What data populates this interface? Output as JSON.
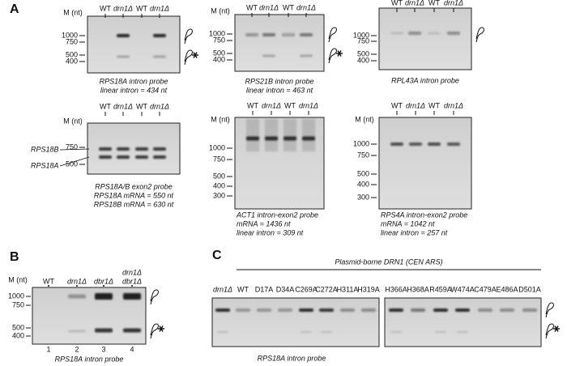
{
  "panel_a": {
    "label": "A",
    "gels": [
      {
        "marker": "M (nt)",
        "lanes": [
          "WT",
          "drn1Δ",
          "WT",
          "drn1Δ"
        ],
        "sizes": [
          "1000",
          "750",
          "500",
          "400"
        ],
        "caption": [
          "RPS18A intron probe",
          "linear intron = 434 nt"
        ]
      },
      {
        "marker": "M (nt)",
        "lanes": [
          "WT",
          "drn1Δ",
          "WT",
          "drn1Δ"
        ],
        "sizes": [
          "1000",
          "750",
          "500",
          "400"
        ],
        "caption": [
          "RPS21B intron probe",
          "linear intron = 463 nt"
        ]
      },
      {
        "lanes": [
          "WT",
          "drn1Δ",
          "WT",
          "drn1Δ"
        ],
        "sizes": [
          "1000",
          "750",
          "500",
          "400"
        ],
        "caption": [
          "RPL43A intron probe"
        ]
      },
      {
        "marker": "M (nt)",
        "lanes": [
          "WT",
          "drn1Δ",
          "WT",
          "drn1Δ"
        ],
        "sizes": [
          "750",
          "500"
        ],
        "band_labels": [
          "RPS18B",
          "RPS18A"
        ],
        "caption": [
          "RPS18A/B exon2 probe",
          "RPS18A mRNA = 550 nt",
          "RPS18B mRNA = 630 nt"
        ]
      },
      {
        "marker": "M (nt)",
        "lanes": [
          "WT",
          "drn1Δ",
          "WT",
          "drn1Δ"
        ],
        "sizes": [
          "1000",
          "750",
          "500",
          "400",
          "300"
        ],
        "caption": [
          "ACT1 intron-exon2 probe",
          "mRNA = 1436 nt",
          "linear intron = 309 nt"
        ]
      },
      {
        "marker": "M (nt)",
        "lanes": [
          "WT",
          "drn1Δ",
          "WT",
          "drn1Δ"
        ],
        "sizes": [
          "1000",
          "750",
          "500",
          "400",
          "300"
        ],
        "caption": [
          "RPS4A intron-exon2 probe",
          "mRNA = 1042 nt",
          "linear intron = 257 nt"
        ]
      }
    ]
  },
  "panel_b": {
    "label": "B",
    "marker": "M (nt)",
    "lanes": [
      [
        "WT"
      ],
      [
        "drn1Δ"
      ],
      [
        "dbr1Δ"
      ],
      [
        "drn1Δ",
        "dbr1Δ"
      ]
    ],
    "lane_numbers": [
      "1",
      "2",
      "3",
      "4"
    ],
    "sizes": [
      "1000",
      "750",
      "500",
      "400"
    ],
    "caption": "RPS18A intron probe"
  },
  "panel_c": {
    "label": "C",
    "header": "Plasmid-borne DRN1 (CEN ARS)",
    "lanes": [
      {
        "text": "drn1Δ",
        "color": "#000000"
      },
      {
        "text": "WT",
        "color": "#8a8a8a"
      },
      {
        "text": "D17A",
        "color": "#8a8a8a"
      },
      {
        "text": "D34A",
        "color": "#8a8a8a"
      },
      {
        "text": "C269A",
        "color": "#000000"
      },
      {
        "text": "C272A",
        "color": "#000000"
      },
      {
        "text": "H311A",
        "color": "#8a8a8a"
      },
      {
        "text": "H319A",
        "color": "#8a8a8a"
      },
      {
        "text": "H366A",
        "color": "#000000"
      },
      {
        "text": "H368A",
        "color": "#8a8a8a"
      },
      {
        "text": "R459A",
        "color": "#000000"
      },
      {
        "text": "W474A",
        "color": "#000000"
      },
      {
        "text": "C479A",
        "color": "#8a8a8a"
      },
      {
        "text": "E486A",
        "color": "#8a8a8a"
      },
      {
        "text": "D501A",
        "color": "#8a8a8a"
      }
    ],
    "caption": "RPS18A intron probe"
  }
}
